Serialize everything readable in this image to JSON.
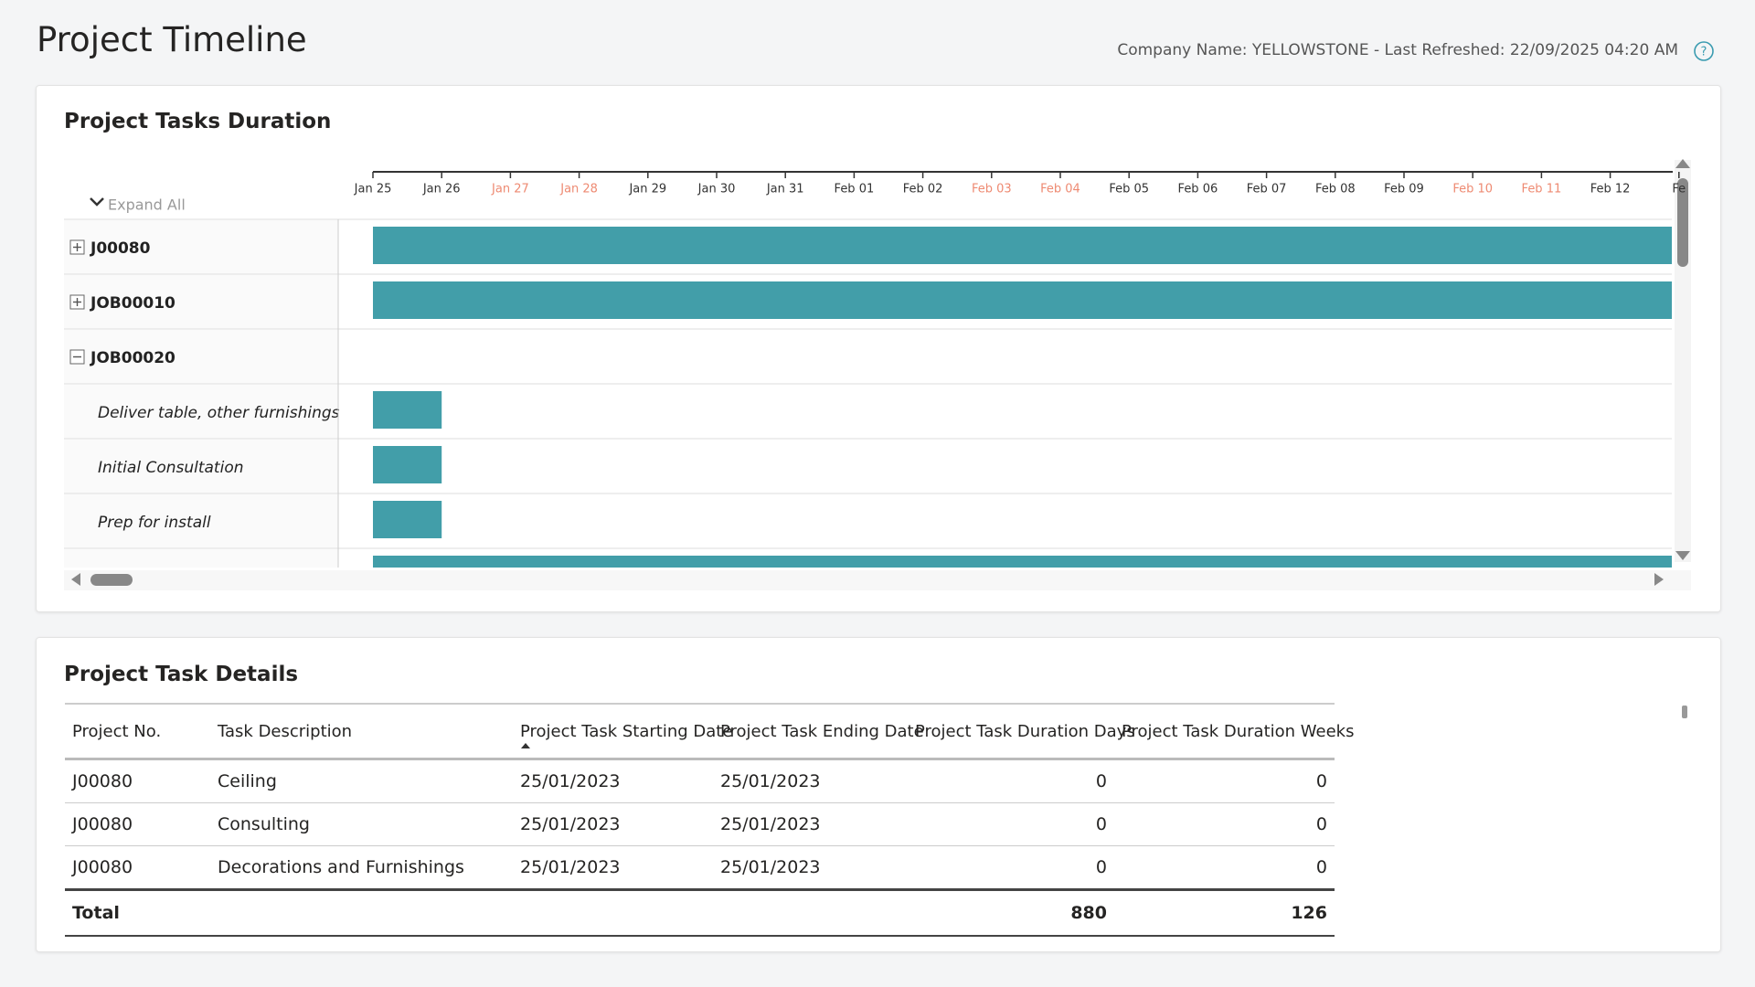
{
  "header": {
    "title": "Project Timeline",
    "info": "Company Name: YELLOWSTONE - Last Refreshed: 22/09/2025 04:20 AM"
  },
  "gantt": {
    "title": "Project Tasks Duration",
    "expand_all": "Expand All",
    "bar_color": "#429ea9",
    "weekend_color": "#ee8a72",
    "dates": [
      {
        "label": "Jan 25",
        "weekend": false
      },
      {
        "label": "Jan 26",
        "weekend": false
      },
      {
        "label": "Jan 27",
        "weekend": true
      },
      {
        "label": "Jan 28",
        "weekend": true
      },
      {
        "label": "Jan 29",
        "weekend": false
      },
      {
        "label": "Jan 30",
        "weekend": false
      },
      {
        "label": "Jan 31",
        "weekend": false
      },
      {
        "label": "Feb 01",
        "weekend": false
      },
      {
        "label": "Feb 02",
        "weekend": false
      },
      {
        "label": "Feb 03",
        "weekend": true
      },
      {
        "label": "Feb 04",
        "weekend": true
      },
      {
        "label": "Feb 05",
        "weekend": false
      },
      {
        "label": "Feb 06",
        "weekend": false
      },
      {
        "label": "Feb 07",
        "weekend": false
      },
      {
        "label": "Feb 08",
        "weekend": false
      },
      {
        "label": "Feb 09",
        "weekend": false
      },
      {
        "label": "Feb 10",
        "weekend": true
      },
      {
        "label": "Feb 11",
        "weekend": true
      },
      {
        "label": "Feb 12",
        "weekend": false
      },
      {
        "label": "Fe",
        "weekend": false
      }
    ],
    "rows": [
      {
        "label": "J00080",
        "level": 0,
        "state": "collapsed",
        "start": "Jan 25",
        "end": null
      },
      {
        "label": "JOB00010",
        "level": 0,
        "state": "collapsed",
        "start": "Jan 25",
        "end": null
      },
      {
        "label": "JOB00020",
        "level": 0,
        "state": "expanded"
      },
      {
        "label": "Deliver table, other furnishings",
        "level": 1,
        "start": "Jan 25",
        "end": "Jan 26"
      },
      {
        "label": "Initial Consultation",
        "level": 1,
        "start": "Jan 25",
        "end": "Jan 26"
      },
      {
        "label": "Prep for install",
        "level": 1,
        "start": "Jan 25",
        "end": "Jan 26"
      },
      {
        "level": 1,
        "start": "Jan 25",
        "end": null
      }
    ]
  },
  "table": {
    "title": "Project Task Details",
    "sorted_column": 2,
    "columns": [
      "Project No.",
      "Task Description",
      "Project Task Starting Date",
      "Project Task Ending Date",
      "Project Task Duration Days",
      "Project Task Duration Weeks"
    ],
    "rows": [
      [
        "J00080",
        "Ceiling",
        "25/01/2023",
        "25/01/2023",
        0,
        0
      ],
      [
        "J00080",
        "Consulting",
        "25/01/2023",
        "25/01/2023",
        0,
        0
      ],
      [
        "J00080",
        "Decorations and Furnishings",
        "25/01/2023",
        "25/01/2023",
        0,
        0
      ]
    ],
    "total": {
      "label": "Total",
      "days": 880,
      "weeks": 126
    }
  }
}
